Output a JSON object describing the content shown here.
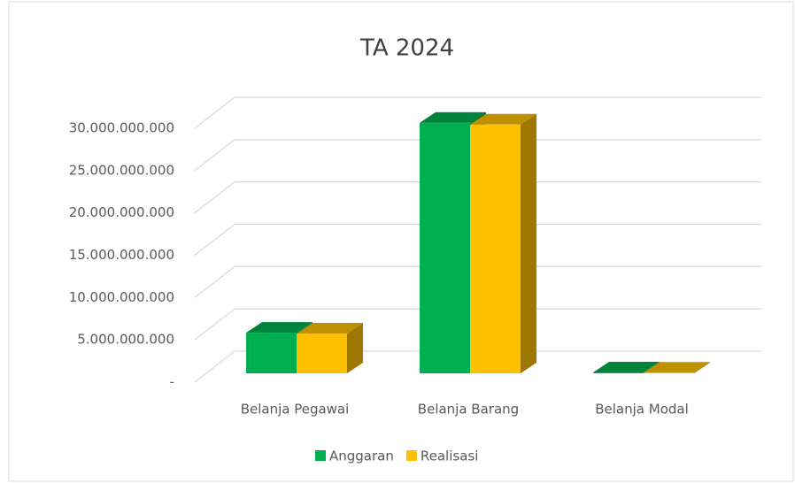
{
  "chart_data": {
    "type": "bar3d",
    "title": "TA 2024",
    "categories": [
      "Belanja Pegawai",
      "Belanja Barang",
      "Belanja Modal"
    ],
    "series": [
      {
        "name": "Anggaran",
        "color": "#00b050",
        "values": [
          4800000000,
          29600000000,
          100000000
        ]
      },
      {
        "name": "Realisasi",
        "color": "#ffc000",
        "values": [
          4700000000,
          29400000000,
          80000000
        ]
      }
    ],
    "ylim": [
      0,
      30000000000
    ],
    "yticks": [
      {
        "value": 0,
        "label": "-"
      },
      {
        "value": 5000000000,
        "label": "5.000.000.000"
      },
      {
        "value": 10000000000,
        "label": "10.000.000.000"
      },
      {
        "value": 15000000000,
        "label": "15.000.000.000"
      },
      {
        "value": 20000000000,
        "label": "20.000.000.000"
      },
      {
        "value": 25000000000,
        "label": "25.000.000.000"
      },
      {
        "value": 30000000000,
        "label": "30.000.000.000"
      }
    ],
    "grid": true,
    "legend": "bottom"
  }
}
